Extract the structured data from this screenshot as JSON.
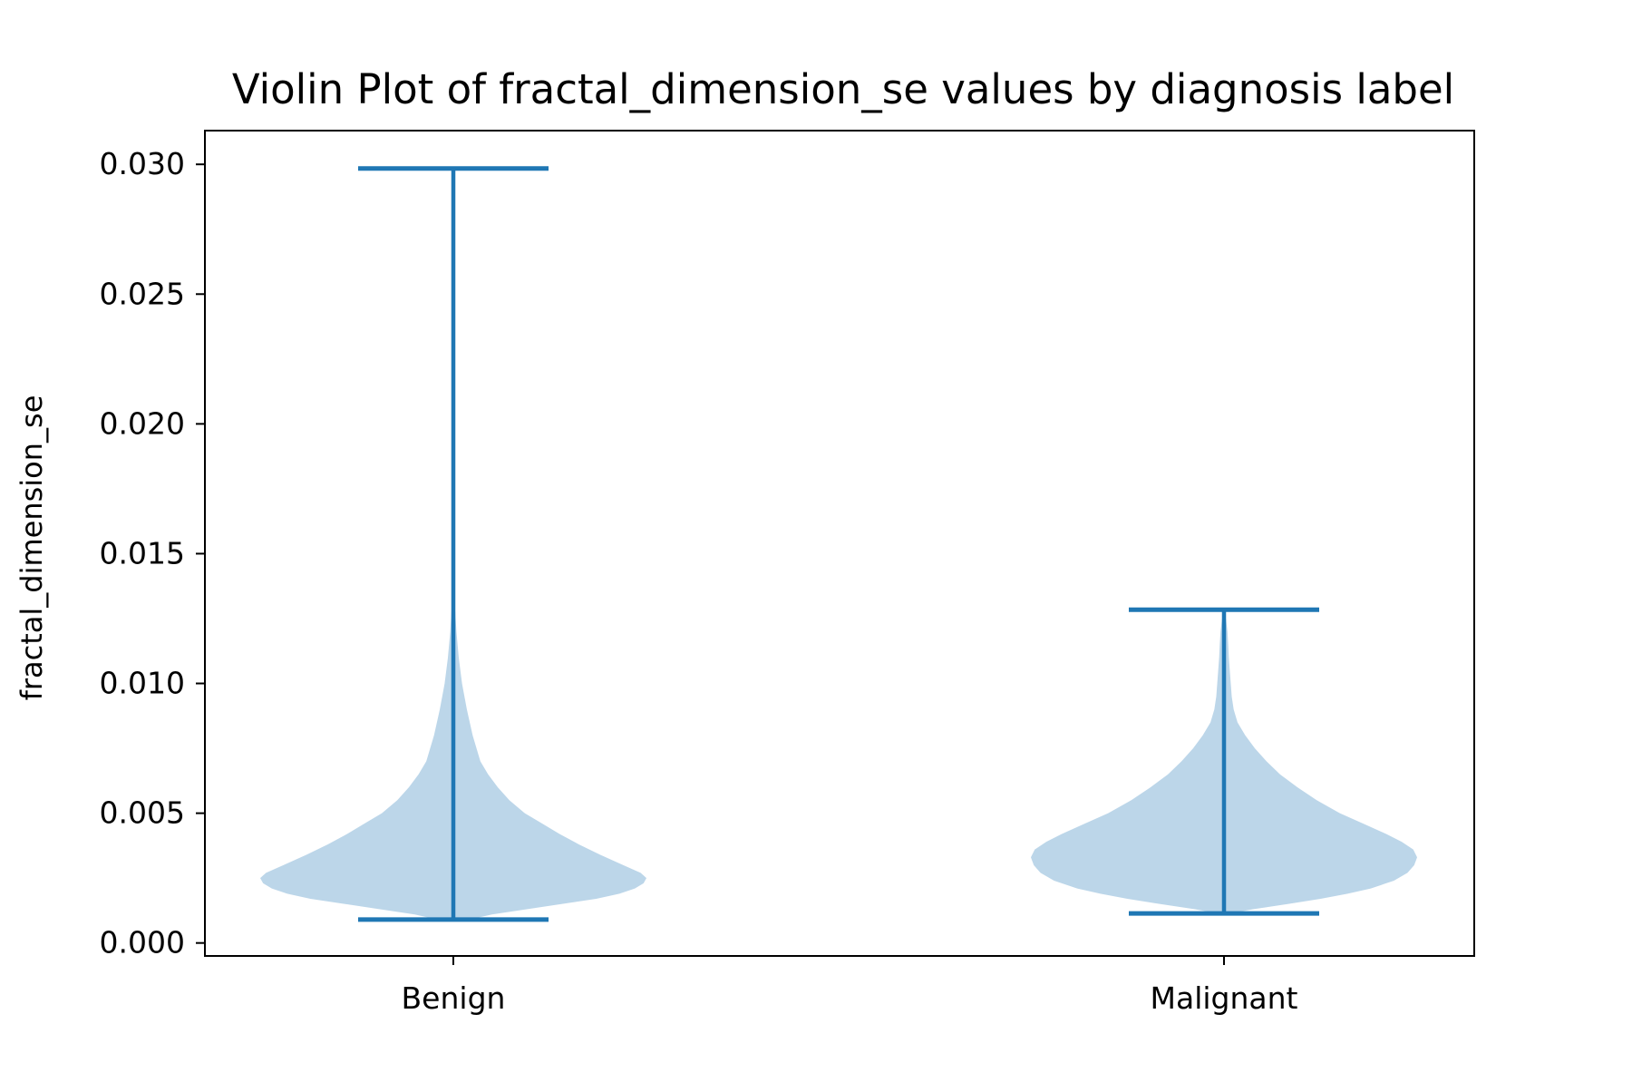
{
  "chart_data": {
    "type": "violin",
    "title": "Violin Plot of fractal_dimension_se values by diagnosis label",
    "xlabel": "",
    "ylabel": "fractal_dimension_se",
    "categories": [
      "Benign",
      "Malignant"
    ],
    "ylim": [
      -0.0005,
      0.0313
    ],
    "yticks": [
      0.0,
      0.005,
      0.01,
      0.015,
      0.02,
      0.025,
      0.03
    ],
    "ytick_labels": [
      "0.000",
      "0.005",
      "0.010",
      "0.015",
      "0.020",
      "0.025",
      "0.030"
    ],
    "grid": false,
    "legend": "none",
    "colors": {
      "line": "#1f77b4",
      "fill": "#bcd6e9",
      "axis": "#000000"
    },
    "violins": [
      {
        "category": "Benign",
        "min": 0.0009,
        "max": 0.02984,
        "density": [
          [
            0.0009,
            0.08
          ],
          [
            0.0011,
            0.2
          ],
          [
            0.0013,
            0.38
          ],
          [
            0.0015,
            0.56
          ],
          [
            0.0017,
            0.74
          ],
          [
            0.0019,
            0.86
          ],
          [
            0.0021,
            0.94
          ],
          [
            0.0023,
            0.985
          ],
          [
            0.0025,
            1.0
          ],
          [
            0.0027,
            0.97
          ],
          [
            0.003,
            0.88
          ],
          [
            0.0034,
            0.76
          ],
          [
            0.0038,
            0.65
          ],
          [
            0.0042,
            0.55
          ],
          [
            0.0046,
            0.46
          ],
          [
            0.005,
            0.37
          ],
          [
            0.0055,
            0.29
          ],
          [
            0.006,
            0.23
          ],
          [
            0.0065,
            0.18
          ],
          [
            0.007,
            0.14
          ],
          [
            0.008,
            0.1
          ],
          [
            0.009,
            0.07
          ],
          [
            0.01,
            0.045
          ],
          [
            0.011,
            0.028
          ],
          [
            0.012,
            0.016
          ],
          [
            0.013,
            0.008
          ],
          [
            0.014,
            0.004
          ],
          [
            0.016,
            0.0015
          ],
          [
            0.02,
            0.0005
          ],
          [
            0.025,
            0.0002
          ],
          [
            0.02984,
            0.0
          ]
        ]
      },
      {
        "category": "Malignant",
        "min": 0.00114,
        "max": 0.01284,
        "density": [
          [
            0.00114,
            0.03
          ],
          [
            0.0013,
            0.15
          ],
          [
            0.0015,
            0.33
          ],
          [
            0.0017,
            0.5
          ],
          [
            0.0019,
            0.64
          ],
          [
            0.0021,
            0.76
          ],
          [
            0.0024,
            0.88
          ],
          [
            0.0027,
            0.95
          ],
          [
            0.003,
            0.985
          ],
          [
            0.0033,
            1.0
          ],
          [
            0.0036,
            0.98
          ],
          [
            0.0039,
            0.92
          ],
          [
            0.0042,
            0.84
          ],
          [
            0.0046,
            0.72
          ],
          [
            0.005,
            0.6
          ],
          [
            0.0055,
            0.48
          ],
          [
            0.006,
            0.38
          ],
          [
            0.0065,
            0.29
          ],
          [
            0.007,
            0.22
          ],
          [
            0.0075,
            0.16
          ],
          [
            0.008,
            0.11
          ],
          [
            0.0085,
            0.07
          ],
          [
            0.009,
            0.05
          ],
          [
            0.0095,
            0.04
          ],
          [
            0.01,
            0.035
          ],
          [
            0.0105,
            0.03
          ],
          [
            0.011,
            0.025
          ],
          [
            0.0115,
            0.022
          ],
          [
            0.012,
            0.018
          ],
          [
            0.0125,
            0.01
          ],
          [
            0.01284,
            0.0
          ]
        ]
      }
    ]
  }
}
